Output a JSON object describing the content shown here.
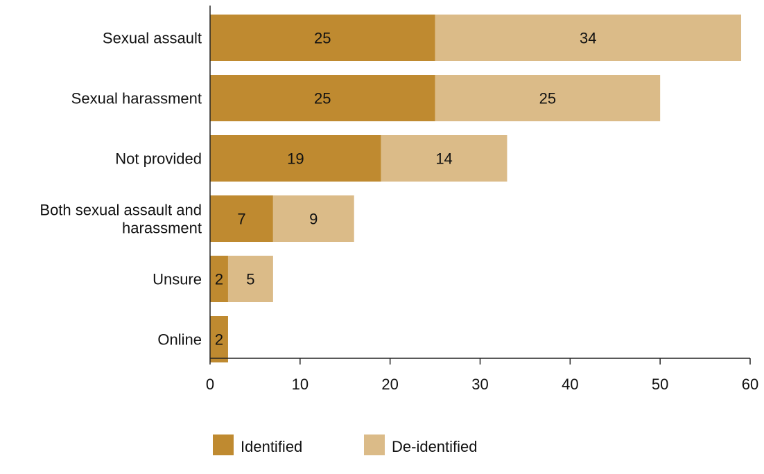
{
  "chart_data": {
    "type": "bar",
    "orientation": "horizontal",
    "stacked": true,
    "categories": [
      "Sexual assault",
      "Sexual harassment",
      "Not provided",
      "Both sexual assault and harassment",
      "Unsure",
      "Online"
    ],
    "category_lines": [
      [
        "Sexual assault"
      ],
      [
        "Sexual harassment"
      ],
      [
        "Not provided"
      ],
      [
        "Both sexual assault and",
        "harassment"
      ],
      [
        "Unsure"
      ],
      [
        "Online"
      ]
    ],
    "series": [
      {
        "name": "Identified",
        "values": [
          25,
          25,
          19,
          7,
          2,
          2
        ],
        "color": "#bf8a30"
      },
      {
        "name": "De-identified",
        "values": [
          34,
          25,
          14,
          9,
          5,
          0
        ],
        "color": "#dbbb88"
      }
    ],
    "xlim": [
      0,
      60
    ],
    "xticks": [
      0,
      10,
      20,
      30,
      40,
      50,
      60
    ],
    "xlabel": "",
    "ylabel": "",
    "title": "",
    "grid": false,
    "legend_position": "bottom"
  }
}
